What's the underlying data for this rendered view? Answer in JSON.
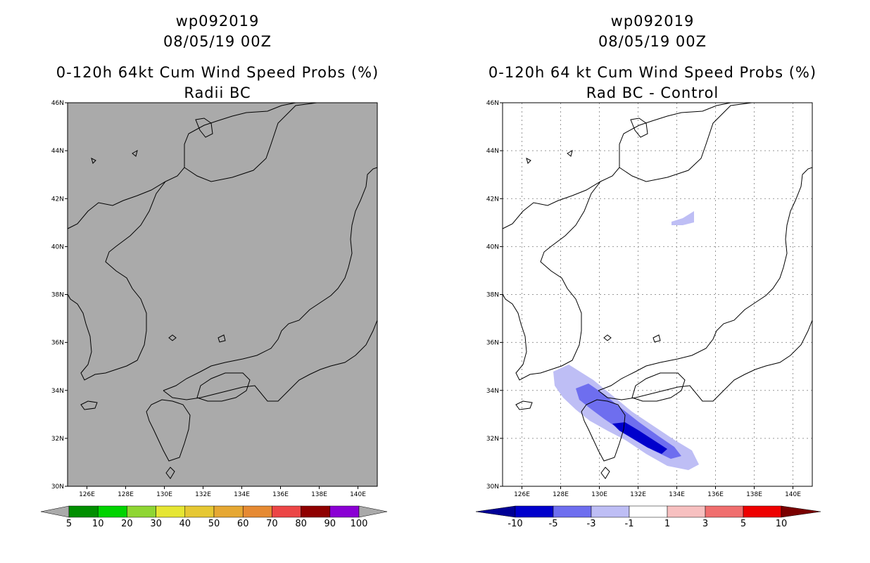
{
  "left_panel": {
    "storm_id": "wp092019",
    "datetime": "08/05/19 00Z",
    "product": "0-120h 64kt Cum Wind Speed Probs (%)",
    "subtitle": "Radii BC",
    "colorbar": {
      "labels": [
        "5",
        "10",
        "20",
        "30",
        "40",
        "50",
        "60",
        "70",
        "80",
        "90",
        "100"
      ],
      "colors": [
        "#008f00",
        "#00d400",
        "#8fd633",
        "#e6e633",
        "#e6c833",
        "#e6a833",
        "#e68a33",
        "#ec4646",
        "#8f0000",
        "#8a00d4"
      ],
      "arrow_color": "#aaaaaa"
    },
    "background_color": "#aaaaaa"
  },
  "right_panel": {
    "storm_id": "wp092019",
    "datetime": "08/05/19 00Z",
    "product": "0-120h 64 kt Cum Wind Speed Probs (%)",
    "subtitle": "Rad BC - Control",
    "colorbar": {
      "labels": [
        "-10",
        "-5",
        "-3",
        "-1",
        "1",
        "3",
        "5",
        "10"
      ],
      "colors": [
        "#0000cc",
        "#6e6eef",
        "#bebef5",
        "#ffffff",
        "#f7c0c0",
        "#f06e6e",
        "#ee0000"
      ],
      "under_color": "#000096",
      "over_color": "#7a0000"
    },
    "background_color": "#ffffff"
  },
  "axes": {
    "lat_ticks": [
      "30N",
      "32N",
      "34N",
      "36N",
      "38N",
      "40N",
      "42N",
      "44N",
      "46N"
    ],
    "lon_ticks": [
      "126E",
      "128E",
      "130E",
      "132E",
      "134E",
      "136E",
      "138E",
      "140E"
    ]
  }
}
